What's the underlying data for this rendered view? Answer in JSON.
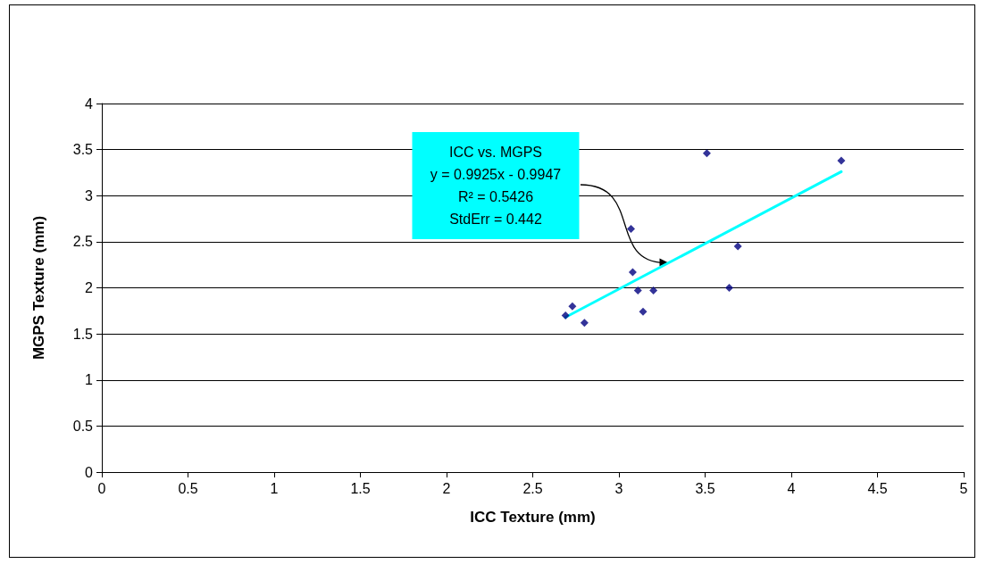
{
  "chart_data": {
    "type": "scatter",
    "xlabel": "ICC Texture (mm)",
    "ylabel": "MGPS Texture (mm)",
    "x": [
      2.69,
      2.73,
      2.8,
      3.07,
      3.08,
      3.11,
      3.14,
      3.2,
      3.51,
      3.64,
      3.69,
      4.29
    ],
    "series": [
      {
        "color": "#000080",
        "values": [
          1.7,
          1.8,
          1.62,
          2.64,
          2.17,
          1.97,
          1.74,
          1.97,
          3.46,
          2.0,
          2.45,
          3.38
        ],
        "marker": "diamond"
      },
      {
        "type": "line",
        "color": "#00ffff",
        "x": [
          2.69,
          4.29
        ],
        "values": [
          1.68,
          3.26
        ],
        "marker": "none"
      }
    ],
    "xlim": [
      0,
      5
    ],
    "xticks": [
      0,
      0.5,
      1,
      1.5,
      2,
      2.5,
      3,
      3.5,
      4,
      4.5,
      5
    ],
    "ylim": [
      0,
      4
    ],
    "yticks": [
      0,
      0.5,
      1,
      1.5,
      2,
      2.5,
      3,
      3.5,
      4
    ],
    "grid": "y",
    "annotations": [
      "ICC vs. MGPS\ny = 0.9925x - 0.9947\nR² = 0.5426\nStdErr = 0.442"
    ]
  }
}
